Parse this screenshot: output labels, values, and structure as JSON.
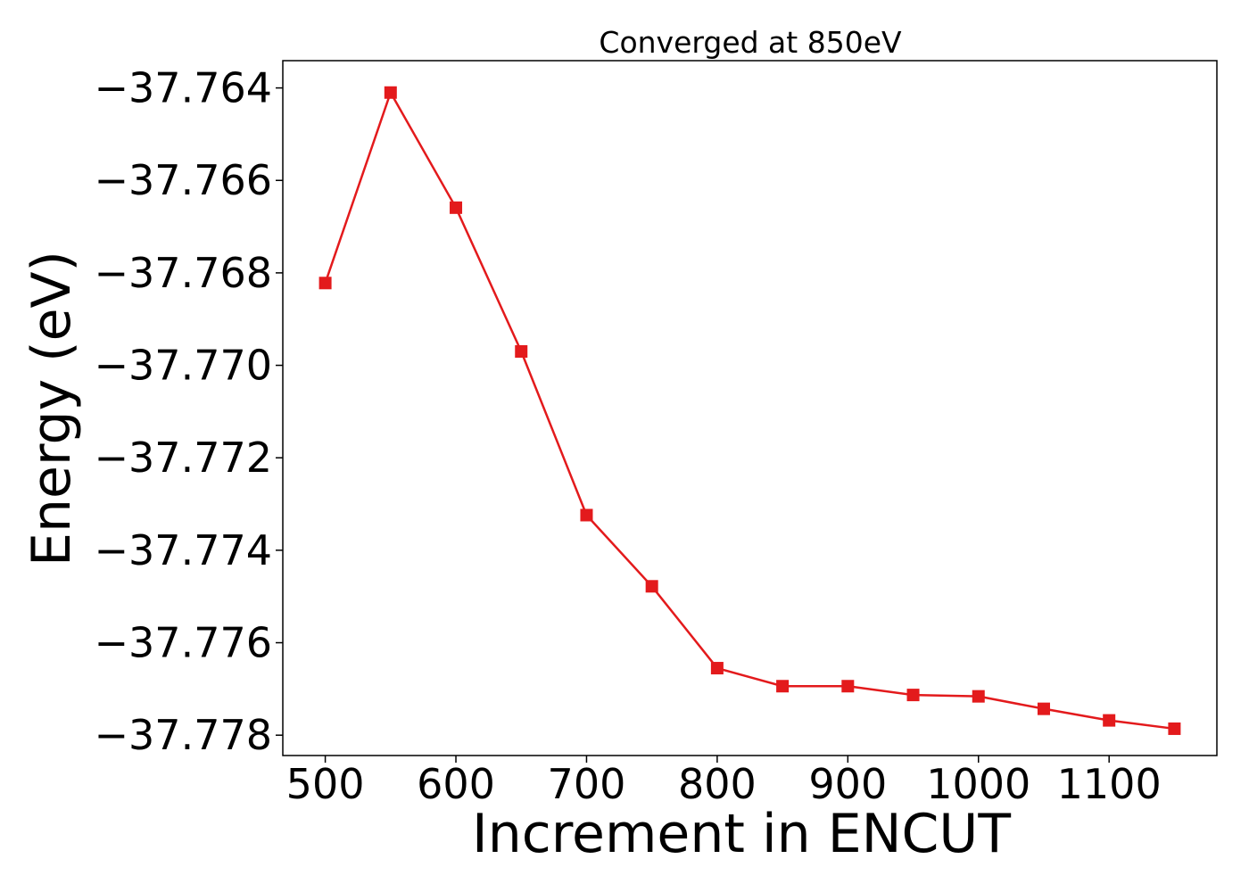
{
  "chart_data": {
    "type": "line",
    "title": "Converged at 850eV",
    "xlabel": "Increment in ENCUT",
    "ylabel": "Energy (eV)",
    "x": [
      500,
      550,
      600,
      650,
      700,
      750,
      800,
      850,
      900,
      950,
      1000,
      1050,
      1100,
      1150
    ],
    "series": [
      {
        "values": [
          -37.76822,
          -37.7641,
          -37.76659,
          -37.7697,
          -37.77324,
          -37.77478,
          -37.77655,
          -37.77694,
          -37.77694,
          -37.77713,
          -37.77716,
          -37.77743,
          -37.77768,
          -37.77786
        ],
        "color": "#e31a1c",
        "marker": "square"
      }
    ],
    "xticks": [
      500,
      600,
      700,
      800,
      900,
      1000,
      1100
    ],
    "yticks": [
      -37.764,
      -37.766,
      -37.768,
      -37.77,
      -37.772,
      -37.774,
      -37.776,
      -37.778
    ],
    "ytick_labels": [
      "−37.764",
      "−37.766",
      "−37.768",
      "−37.770",
      "−37.772",
      "−37.774",
      "−37.776",
      "−37.778"
    ],
    "xlim": [
      467.5,
      1182.5
    ],
    "ylim": [
      -37.77844,
      -37.76341
    ],
    "grid": false,
    "legend": false
  }
}
